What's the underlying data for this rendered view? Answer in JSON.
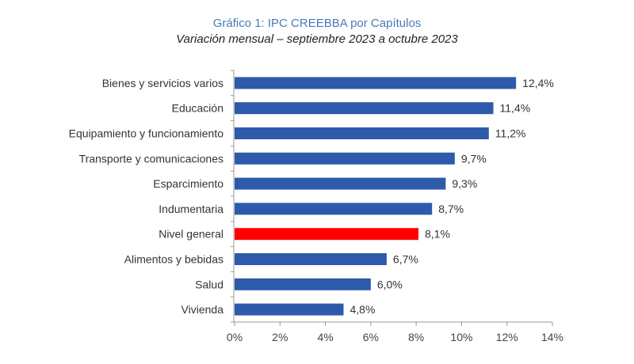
{
  "chart_data": {
    "type": "bar",
    "orientation": "horizontal",
    "title": "Gráfico 1: IPC CREEBBA por Capítulos",
    "subtitle": "Variación mensual – septiembre 2023 a octubre 2023",
    "xlabel": "",
    "ylabel": "",
    "categories": [
      "Bienes y servicios varios",
      "Educación",
      "Equipamiento y funcionamiento",
      "Transporte y comunicaciones",
      "Esparcimiento",
      "Indumentaria",
      "Nivel general",
      "Alimentos y bebidas",
      "Salud",
      "Vivienda"
    ],
    "values": [
      12.4,
      11.4,
      11.2,
      9.7,
      9.3,
      8.7,
      8.1,
      6.7,
      6.0,
      4.8
    ],
    "value_labels": [
      "12,4%",
      "11,4%",
      "11,2%",
      "9,7%",
      "9,3%",
      "8,7%",
      "8,1%",
      "6,7%",
      "6,0%",
      "4,8%"
    ],
    "highlight_category": "Nivel general",
    "colors": {
      "default": "#2e5aac",
      "highlight": "#ff0000"
    },
    "xlim": [
      0,
      14
    ],
    "xticks": [
      0,
      2,
      4,
      6,
      8,
      10,
      12,
      14
    ],
    "xtick_labels": [
      "0%",
      "2%",
      "4%",
      "6%",
      "8%",
      "10%",
      "12%",
      "14%"
    ],
    "grid": false,
    "legend": "none"
  }
}
